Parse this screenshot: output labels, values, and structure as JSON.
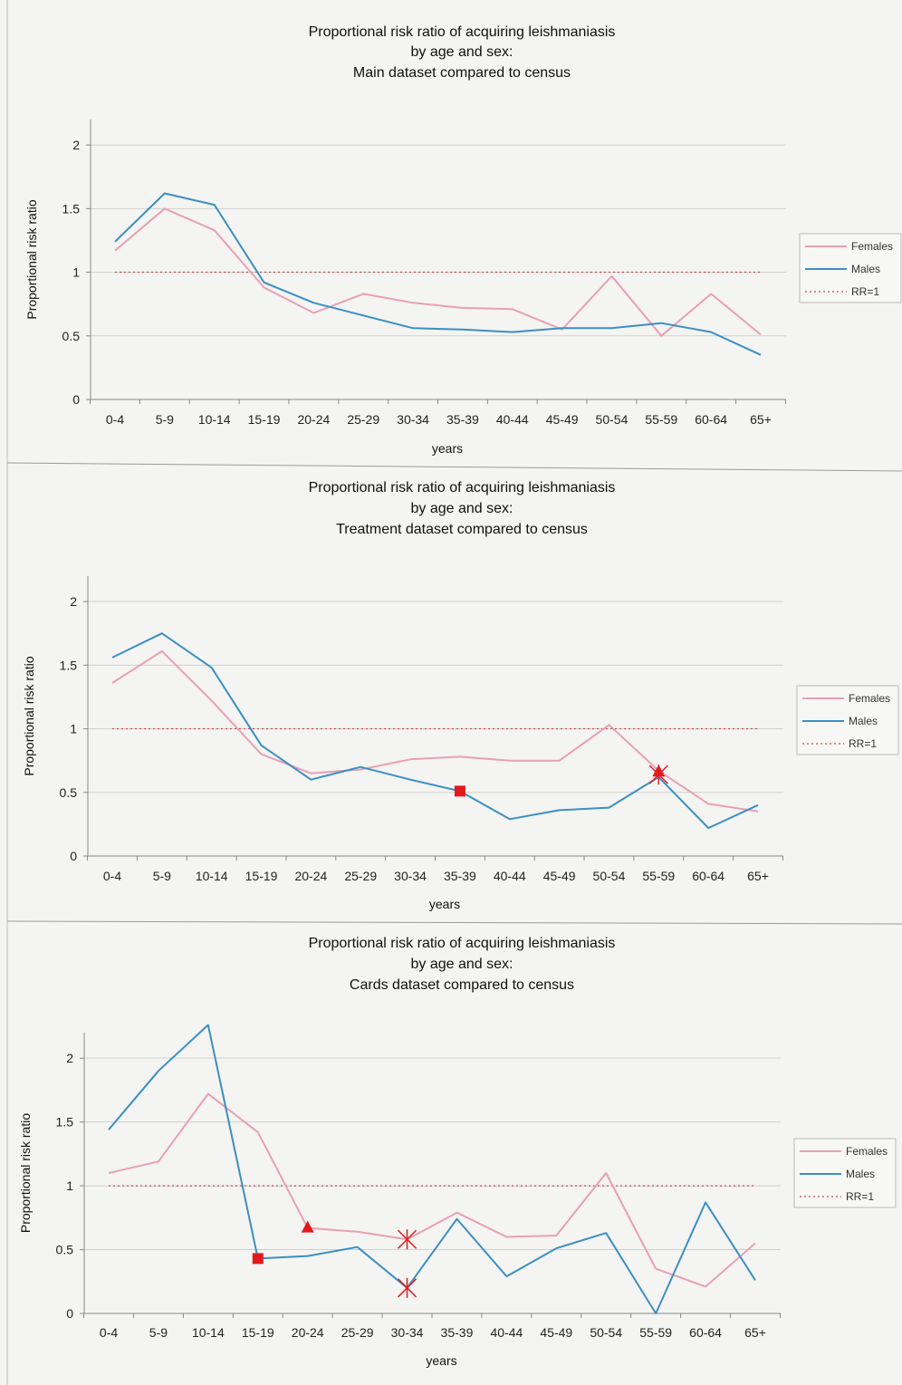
{
  "chart_data": [
    {
      "type": "line",
      "title": [
        "Proportional risk ratio of acquiring leishmaniasis",
        "by age and sex:",
        "Main dataset compared to census"
      ],
      "xlabel": "years",
      "ylabel": "Proportional risk ratio",
      "ylim": [
        0,
        2.2
      ],
      "yticks": [
        0,
        0.5,
        1,
        1.5,
        2
      ],
      "grid": true,
      "legend_position": "right",
      "categories": [
        "0-4",
        "5-9",
        "10-14",
        "15-19",
        "20-24",
        "25-29",
        "30-34",
        "35-39",
        "40-44",
        "45-49",
        "50-54",
        "55-59",
        "60-64",
        "65+"
      ],
      "series": [
        {
          "name": "Females",
          "color": "#e8a0b4",
          "style": "solid",
          "values": [
            1.17,
            1.5,
            1.33,
            0.88,
            0.68,
            0.83,
            0.76,
            0.72,
            0.71,
            0.55,
            0.97,
            0.5,
            0.83,
            0.51
          ]
        },
        {
          "name": "Males",
          "color": "#3b8fc2",
          "style": "solid",
          "values": [
            1.24,
            1.62,
            1.53,
            0.92,
            0.76,
            0.66,
            0.56,
            0.55,
            0.53,
            0.56,
            0.56,
            0.6,
            0.53,
            0.35
          ]
        },
        {
          "name": "RR=1",
          "color": "#c0504d",
          "style": "dotted",
          "values": [
            1,
            1,
            1,
            1,
            1,
            1,
            1,
            1,
            1,
            1,
            1,
            1,
            1,
            1
          ]
        }
      ],
      "markers": []
    },
    {
      "type": "line",
      "title": [
        "Proportional risk ratio of acquiring leishmaniasis",
        "by age and sex:",
        "Treatment dataset compared to census"
      ],
      "xlabel": "years",
      "ylabel": "Proportional risk ratio",
      "ylim": [
        0,
        2.2
      ],
      "yticks": [
        0,
        0.5,
        1,
        1.5,
        2
      ],
      "grid": true,
      "legend_position": "right",
      "categories": [
        "0-4",
        "5-9",
        "10-14",
        "15-19",
        "20-24",
        "25-29",
        "30-34",
        "35-39",
        "40-44",
        "45-49",
        "50-54",
        "55-59",
        "60-64",
        "65+"
      ],
      "series": [
        {
          "name": "Females",
          "color": "#e8a0b4",
          "style": "solid",
          "values": [
            1.36,
            1.61,
            1.22,
            0.8,
            0.65,
            0.68,
            0.76,
            0.78,
            0.75,
            0.75,
            1.03,
            0.67,
            0.41,
            0.35
          ]
        },
        {
          "name": "Males",
          "color": "#3b8fc2",
          "style": "solid",
          "values": [
            1.56,
            1.75,
            1.48,
            0.87,
            0.6,
            0.7,
            0.6,
            0.51,
            0.29,
            0.36,
            0.38,
            0.62,
            0.22,
            0.4
          ]
        },
        {
          "name": "RR=1",
          "color": "#c0504d",
          "style": "dotted",
          "values": [
            1,
            1,
            1,
            1,
            1,
            1,
            1,
            1,
            1,
            1,
            1,
            1,
            1,
            1
          ]
        }
      ],
      "markers": [
        {
          "shape": "square",
          "category": "35-39",
          "value": 0.51
        },
        {
          "shape": "triangle",
          "category": "55-59",
          "value": 0.66
        },
        {
          "shape": "star",
          "category": "55-59",
          "value": 0.64
        }
      ]
    },
    {
      "type": "line",
      "title": [
        "Proportional risk ratio of acquiring leishmaniasis",
        "by age and sex:",
        "Cards dataset compared to census"
      ],
      "xlabel": "years",
      "ylabel": "Proportional risk ratio",
      "ylim": [
        0,
        2.2
      ],
      "yticks": [
        0,
        0.5,
        1,
        1.5,
        2
      ],
      "grid": true,
      "legend_position": "right",
      "categories": [
        "0-4",
        "5-9",
        "10-14",
        "15-19",
        "20-24",
        "25-29",
        "30-34",
        "35-39",
        "40-44",
        "45-49",
        "50-54",
        "55-59",
        "60-64",
        "65+"
      ],
      "series": [
        {
          "name": "Females",
          "color": "#e8a0b4",
          "style": "solid",
          "values": [
            1.1,
            1.19,
            1.72,
            1.42,
            0.67,
            0.64,
            0.58,
            0.79,
            0.6,
            0.61,
            1.1,
            0.35,
            0.21,
            0.55
          ]
        },
        {
          "name": "Males",
          "color": "#3b8fc2",
          "style": "solid",
          "values": [
            1.44,
            1.9,
            2.26,
            0.43,
            0.45,
            0.52,
            0.2,
            0.74,
            0.29,
            0.51,
            0.63,
            0.0,
            0.87,
            0.26
          ]
        },
        {
          "name": "RR=1",
          "color": "#c0504d",
          "style": "dotted",
          "values": [
            1,
            1,
            1,
            1,
            1,
            1,
            1,
            1,
            1,
            1,
            1,
            1,
            1,
            1
          ]
        }
      ],
      "markers": [
        {
          "shape": "square",
          "category": "15-19",
          "value": 0.43
        },
        {
          "shape": "triangle",
          "category": "20-24",
          "value": 0.67
        },
        {
          "shape": "star",
          "category": "30-34",
          "value": 0.58
        },
        {
          "shape": "star",
          "category": "30-34",
          "value": 0.2
        }
      ]
    }
  ],
  "colors": {
    "marker": "#e31a1c",
    "axis": "#888888",
    "grid": "#d0d0d0",
    "divider": "#9a9a9a"
  }
}
